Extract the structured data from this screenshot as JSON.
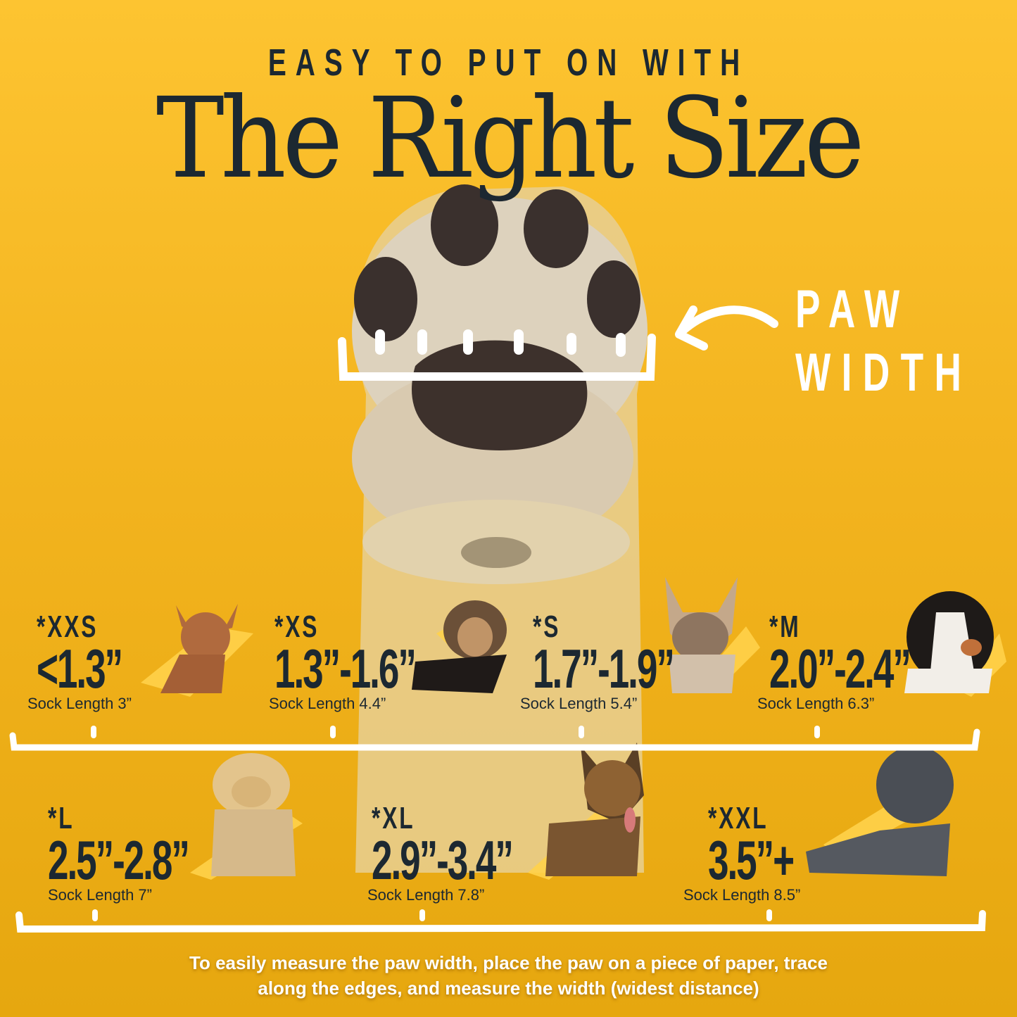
{
  "header": {
    "kicker": "EASY TO PUT ON WITH",
    "title": "The Right Size"
  },
  "paw_callout": {
    "line1": "PAW",
    "line2": "WIDTH",
    "icon": "curved-arrow-left-icon"
  },
  "sizes_row1": [
    {
      "label": "*XXS",
      "width": "<1.3”",
      "sock": "Sock Length 3”",
      "dog": "chihuahua"
    },
    {
      "label": "*XS",
      "width": "1.3”-1.6”",
      "sock": "Sock Length 4.4”",
      "dog": "yorkshire-terrier"
    },
    {
      "label": "*S",
      "width": "1.7”-1.9”",
      "sock": "Sock Length 5.4”",
      "dog": "french-bulldog"
    },
    {
      "label": "*M",
      "width": "2.0”-2.4”",
      "sock": "Sock Length 6.3”",
      "dog": "bernese-mountain-dog"
    }
  ],
  "sizes_row2": [
    {
      "label": "*L",
      "width": "2.5”-2.8”",
      "sock": "Sock Length 7”",
      "dog": "golden-retriever"
    },
    {
      "label": "*XL",
      "width": "2.9”-3.4”",
      "sock": "Sock Length 7.8”",
      "dog": "german-shepherd"
    },
    {
      "label": "*XXL",
      "width": "3.5”+",
      "sock": "Sock Length 8.5”",
      "dog": "great-dane"
    }
  ],
  "footer": {
    "line1": "To easily measure the paw width, place the paw on a piece of paper, trace",
    "line2": "along the edges, and measure the width (widest distance)"
  },
  "colors": {
    "background_top": "#fdc431",
    "background_bottom": "#e6a70f",
    "text_dark": "#1c2831",
    "ruler": "#ffffff",
    "brush": "#ffd24a"
  }
}
